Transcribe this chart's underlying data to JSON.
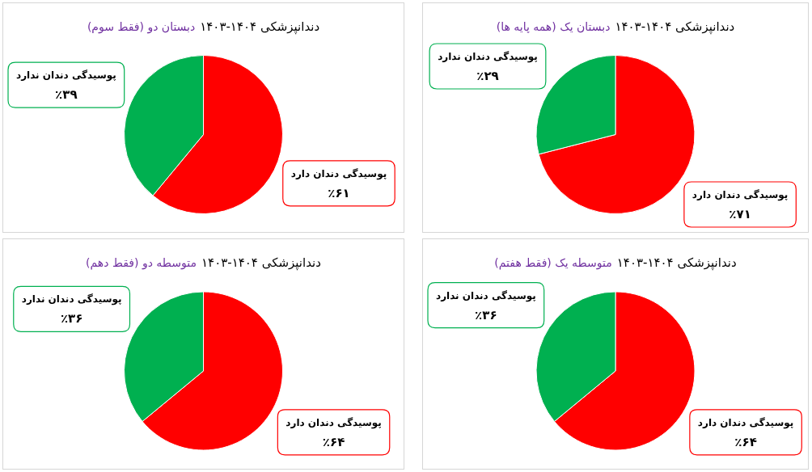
{
  "chart_data": [
    {
      "type": "pie",
      "title": "دندانپزشکی ۱۴۰۴-۱۴۰۳",
      "subtitle": "دبستان یک (همه پایه ها)",
      "categories": [
        "پوسیدگی دندان دارد",
        "پوسیدگی دندان ندارد"
      ],
      "values": [
        71,
        29
      ],
      "colors": [
        "#ff0000",
        "#00b050"
      ],
      "value_labels": [
        "٪۷۱",
        "٪۲۹"
      ]
    },
    {
      "type": "pie",
      "title": "دندانپزشکی ۱۴۰۴-۱۴۰۳",
      "subtitle": "دبستان دو (فقط سوم)",
      "categories": [
        "پوسیدگی دندان دارد",
        "پوسیدگی دندان ندارد"
      ],
      "values": [
        61,
        39
      ],
      "colors": [
        "#ff0000",
        "#00b050"
      ],
      "value_labels": [
        "٪۶۱",
        "٪۳۹"
      ]
    },
    {
      "type": "pie",
      "title": "دندانپزشکی ۱۴۰۴-۱۴۰۳",
      "subtitle": "متوسطه یک (فقط هفتم)",
      "categories": [
        "پوسیدگی دندان دارد",
        "پوسیدگی دندان ندارد"
      ],
      "values": [
        64,
        36
      ],
      "colors": [
        "#ff0000",
        "#00b050"
      ],
      "value_labels": [
        "٪۶۴",
        "٪۳۶"
      ]
    },
    {
      "type": "pie",
      "title": "دندانپزشکی ۱۴۰۴-۱۴۰۳",
      "subtitle": "متوسطه دو (فقط دهم)",
      "categories": [
        "پوسیدگی دندان دارد",
        "پوسیدگی دندان ندارد"
      ],
      "values": [
        64,
        36
      ],
      "colors": [
        "#ff0000",
        "#00b050"
      ],
      "value_labels": [
        "٪۶۴",
        "٪۳۶"
      ]
    }
  ]
}
